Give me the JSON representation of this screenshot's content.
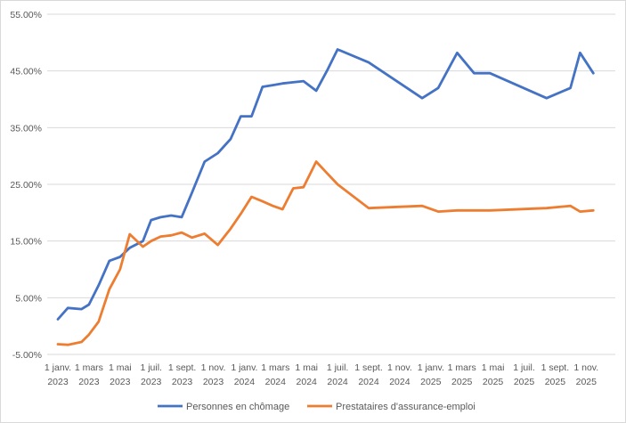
{
  "chart_data": {
    "type": "line",
    "title": "",
    "xlabel": "",
    "ylabel": "",
    "ylim": [
      -5,
      55
    ],
    "yticks": [
      "-5.00%",
      "5.00%",
      "15.00%",
      "25.00%",
      "35.00%",
      "45.00%",
      "55.00%"
    ],
    "grid": "horizontal",
    "legend_position": "bottom",
    "x_tick_labels": [
      [
        "1 janv.",
        "2023"
      ],
      [
        "1 mars",
        "2023"
      ],
      [
        "1 mai",
        "2023"
      ],
      [
        "1 juil.",
        "2023"
      ],
      [
        "1 sept.",
        "2023"
      ],
      [
        "1 nov.",
        "2023"
      ],
      [
        "1 janv.",
        "2024"
      ],
      [
        "1 mars",
        "2024"
      ],
      [
        "1 mai",
        "2024"
      ],
      [
        "1 juil.",
        "2024"
      ],
      [
        "1 sept.",
        "2024"
      ],
      [
        "1 nov.",
        "2024"
      ],
      [
        "1 janv.",
        "2025"
      ],
      [
        "1 mars",
        "2025"
      ],
      [
        "1 mai",
        "2025"
      ],
      [
        "1 juil.",
        "2025"
      ],
      [
        "1 sept.",
        "2025"
      ],
      [
        "1 nov.",
        "2025"
      ]
    ],
    "x_tick_dates": [
      "2023-01-01",
      "2023-03-01",
      "2023-05-01",
      "2023-07-01",
      "2023-09-01",
      "2023-11-01",
      "2024-01-01",
      "2024-03-01",
      "2024-05-01",
      "2024-07-01",
      "2024-09-01",
      "2024-11-01",
      "2025-01-01",
      "2025-03-01",
      "2025-05-01",
      "2025-07-01",
      "2025-09-01",
      "2025-11-01"
    ],
    "series": [
      {
        "name": "Personnes en chômage",
        "color": "#4472C4",
        "x": [
          "2023-01-01",
          "2023-01-20",
          "2023-02-15",
          "2023-03-01",
          "2023-03-20",
          "2023-04-10",
          "2023-05-01",
          "2023-05-20",
          "2023-06-15",
          "2023-07-01",
          "2023-07-20",
          "2023-08-10",
          "2023-08-31",
          "2023-09-20",
          "2023-10-15",
          "2023-11-10",
          "2023-12-05",
          "2023-12-25",
          "2024-01-15",
          "2024-02-05",
          "2024-02-25",
          "2024-03-15",
          "2024-04-05",
          "2024-04-25",
          "2024-05-20",
          "2024-06-10",
          "2024-07-01",
          "2024-09-01",
          "2024-12-15",
          "2025-01-15",
          "2025-02-20",
          "2025-03-25",
          "2025-04-25",
          "2025-08-15",
          "2025-10-01",
          "2025-10-20",
          "2025-11-15"
        ],
        "y": [
          1.2,
          3.2,
          3.0,
          3.8,
          7.2,
          11.5,
          12.2,
          13.8,
          15.0,
          18.7,
          19.2,
          19.5,
          19.2,
          23.5,
          29.0,
          30.5,
          33.0,
          37.0,
          37.0,
          42.2,
          42.5,
          42.8,
          43.0,
          43.2,
          41.5,
          45.0,
          48.8,
          46.5,
          40.2,
          42.0,
          48.2,
          44.6,
          44.6,
          40.2,
          42.0,
          48.2,
          44.6
        ]
      },
      {
        "name": "Prestataires d'assurance-emploi",
        "color": "#ED7D31",
        "x": [
          "2023-01-01",
          "2023-01-20",
          "2023-02-15",
          "2023-03-01",
          "2023-03-20",
          "2023-04-10",
          "2023-05-01",
          "2023-05-20",
          "2023-06-15",
          "2023-07-01",
          "2023-07-20",
          "2023-08-10",
          "2023-08-31",
          "2023-09-20",
          "2023-10-15",
          "2023-11-10",
          "2023-12-05",
          "2023-12-25",
          "2024-01-15",
          "2024-02-05",
          "2024-02-25",
          "2024-03-15",
          "2024-04-05",
          "2024-04-25",
          "2024-05-20",
          "2024-06-10",
          "2024-07-01",
          "2024-09-01",
          "2024-12-15",
          "2025-01-15",
          "2025-02-20",
          "2025-03-25",
          "2025-04-25",
          "2025-08-15",
          "2025-10-01",
          "2025-10-20",
          "2025-11-15"
        ],
        "y": [
          -3.2,
          -3.3,
          -2.8,
          -1.5,
          0.8,
          6.5,
          10.0,
          16.2,
          14.0,
          15.0,
          15.8,
          16.0,
          16.5,
          15.6,
          16.3,
          14.3,
          17.2,
          19.8,
          22.8,
          22.0,
          21.2,
          20.6,
          24.3,
          24.5,
          29.0,
          27.0,
          25.0,
          20.8,
          21.2,
          20.2,
          20.4,
          20.4,
          20.4,
          20.8,
          21.2,
          20.2,
          20.4
        ]
      }
    ]
  }
}
